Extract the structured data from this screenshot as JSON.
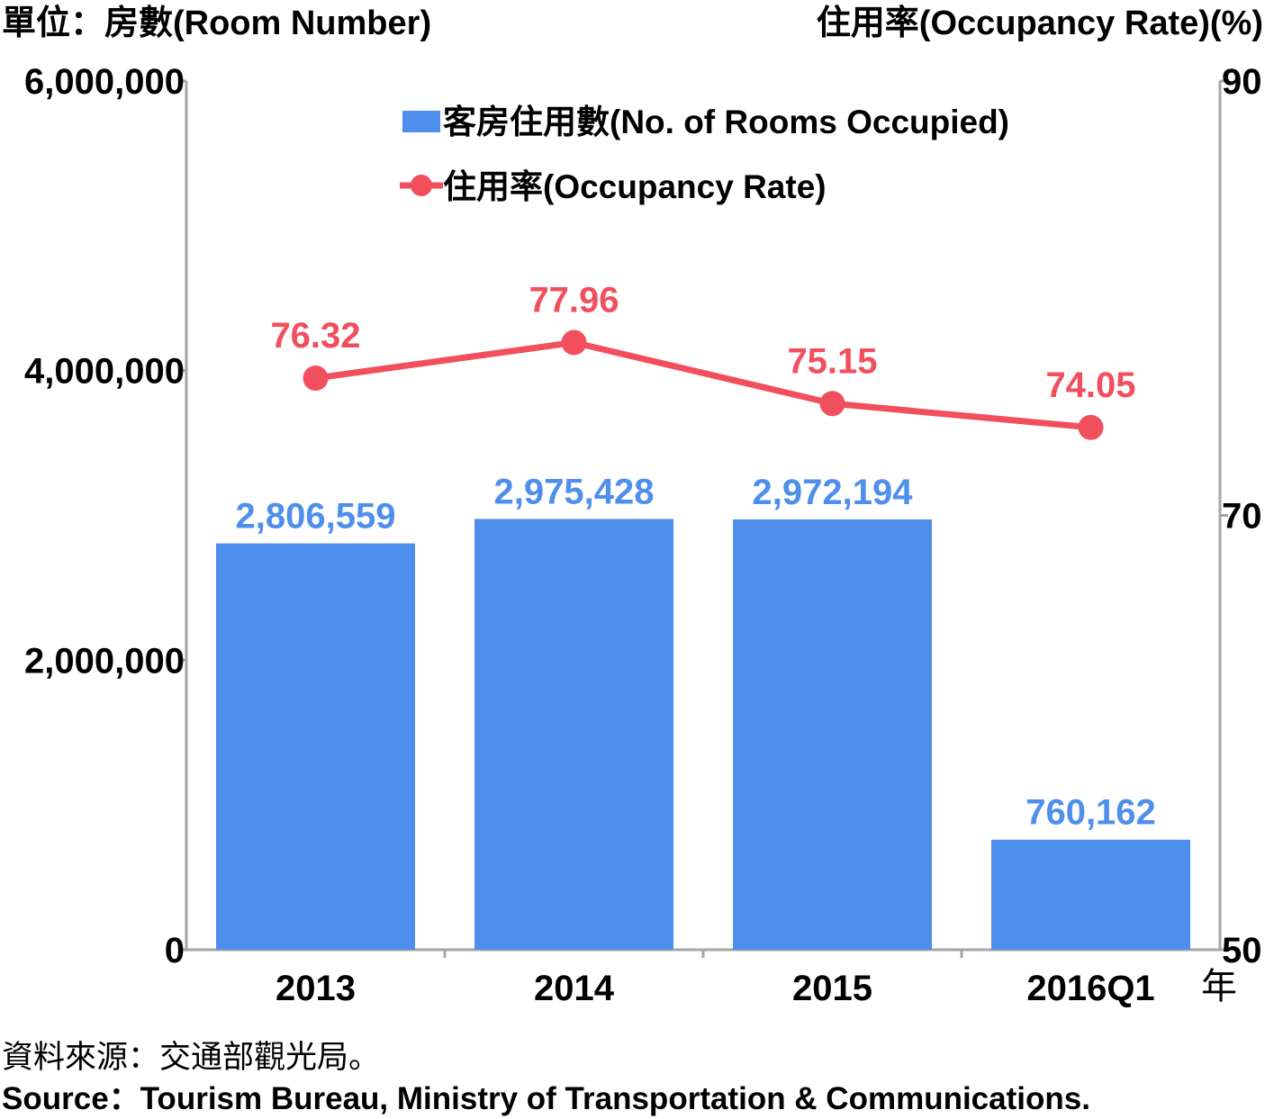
{
  "chart_data": {
    "type": "bar",
    "left_axis_title": "單位：房數(Room Number)",
    "right_axis_title": "住用率(Occupancy Rate)(%)",
    "x_unit": "年",
    "categories": [
      "2013",
      "2014",
      "2015",
      "2016Q1"
    ],
    "left_axis": {
      "ylim": [
        0,
        6000000
      ],
      "ticks": [
        0,
        2000000,
        4000000,
        6000000
      ],
      "tick_labels": [
        "0",
        "2,000,000",
        "4,000,000",
        "6,000,000"
      ]
    },
    "right_axis": {
      "ylim": [
        50,
        90
      ],
      "ticks": [
        50,
        70,
        90
      ],
      "tick_labels": [
        "50",
        "70",
        "90"
      ]
    },
    "series": [
      {
        "name": "客房住用數(No. of Rooms Occupied)",
        "type": "bar",
        "axis": "left",
        "color": "#4f8fec",
        "values": [
          2806559,
          2975428,
          2972194,
          760162
        ],
        "labels": [
          "2,806,559",
          "2,975,428",
          "2,972,194",
          "760,162"
        ]
      },
      {
        "name": "住用率(Occupancy Rate)",
        "type": "line",
        "axis": "right",
        "color": "#f24f5e",
        "values": [
          76.32,
          77.96,
          75.15,
          74.05
        ],
        "labels": [
          "76.32",
          "77.96",
          "75.15",
          "74.05"
        ]
      }
    ],
    "legend_position": "top-center",
    "grid": false
  },
  "source": {
    "zh": "資料來源：交通部觀光局。",
    "en": "Source：Tourism Bureau, Ministry of Transportation & Communications."
  }
}
